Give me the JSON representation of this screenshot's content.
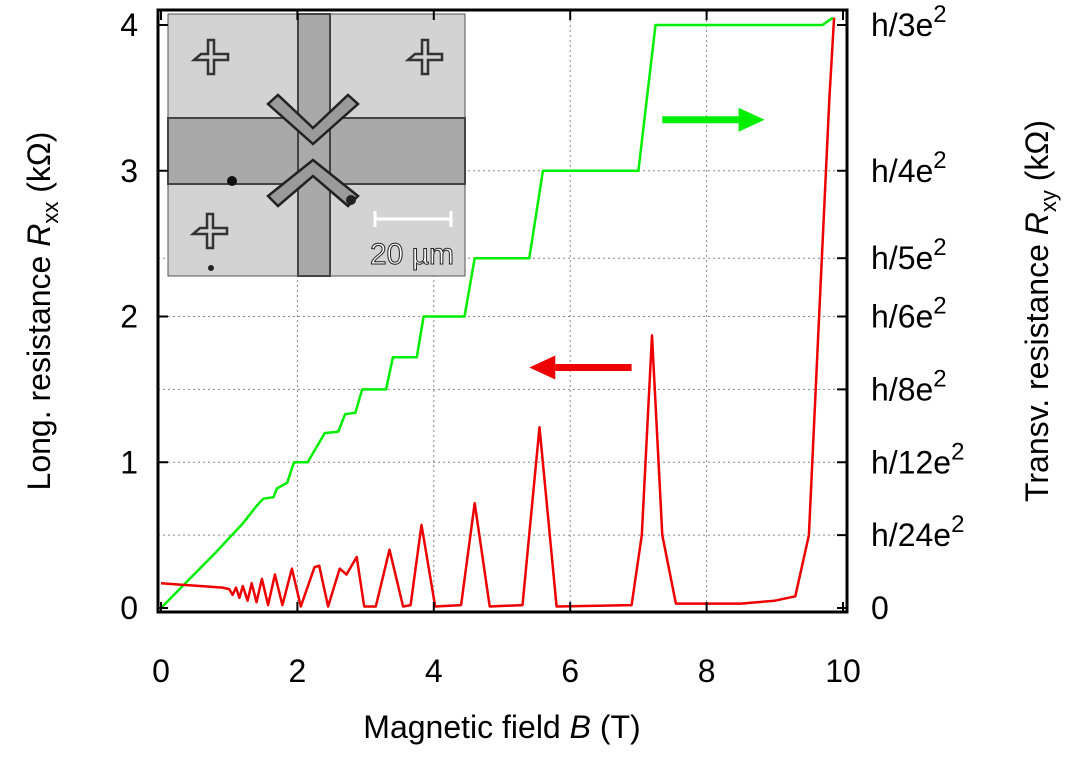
{
  "chart_data": {
    "type": "line",
    "xlabel": {
      "prefix": "Magnetic field ",
      "symbol": "B",
      "suffix": " (T)"
    },
    "ylabel_left": {
      "prefix": "Long. resistance ",
      "symbol": "R",
      "sub": "xx",
      "suffix": " (kΩ)"
    },
    "ylabel_right": {
      "prefix": "Transv. resistance ",
      "symbol": "R",
      "sub": "xy",
      "suffix": " (kΩ)"
    },
    "xlim": [
      0,
      10
    ],
    "ylim": [
      0,
      4
    ],
    "grid": true,
    "x_ticks": [
      "0",
      "2",
      "4",
      "6",
      "8",
      "10"
    ],
    "y_ticks_left": [
      "0",
      "1",
      "2",
      "3",
      "4"
    ],
    "y_ticks_right": [
      {
        "label": "0",
        "y": 0
      },
      {
        "label": "h/24e",
        "sup": "2",
        "y": 0.5
      },
      {
        "label": "h/12e",
        "sup": "2",
        "y": 1.0
      },
      {
        "label": "h/8e",
        "sup": "2",
        "y": 1.5
      },
      {
        "label": "h/6e",
        "sup": "2",
        "y": 2.0
      },
      {
        "label": "h/5e",
        "sup": "2",
        "y": 2.4
      },
      {
        "label": "h/4e",
        "sup": "2",
        "y": 3.0
      },
      {
        "label": "h/3e",
        "sup": "2",
        "y": 4.0
      }
    ],
    "series": [
      {
        "color": "#00ee00",
        "axis": "right",
        "points": [
          [
            0.0,
            0.0
          ],
          [
            0.4,
            0.19
          ],
          [
            0.8,
            0.38
          ],
          [
            1.0,
            0.48
          ],
          [
            1.2,
            0.58
          ],
          [
            1.4,
            0.7
          ],
          [
            1.5,
            0.75
          ],
          [
            1.65,
            0.76
          ],
          [
            1.7,
            0.82
          ],
          [
            1.85,
            0.86
          ],
          [
            1.95,
            1.0
          ],
          [
            2.15,
            1.0
          ],
          [
            2.25,
            1.08
          ],
          [
            2.4,
            1.2
          ],
          [
            2.6,
            1.21
          ],
          [
            2.7,
            1.33
          ],
          [
            2.85,
            1.34
          ],
          [
            2.95,
            1.5
          ],
          [
            3.3,
            1.5
          ],
          [
            3.4,
            1.72
          ],
          [
            3.75,
            1.72
          ],
          [
            3.85,
            2.0
          ],
          [
            4.45,
            2.0
          ],
          [
            4.6,
            2.4
          ],
          [
            5.4,
            2.4
          ],
          [
            5.6,
            3.0
          ],
          [
            7.0,
            3.0
          ],
          [
            7.25,
            4.0
          ],
          [
            9.7,
            4.0
          ],
          [
            9.85,
            4.05
          ]
        ]
      },
      {
        "color": "#ee0000",
        "axis": "left",
        "points": [
          [
            0.0,
            0.17
          ],
          [
            0.3,
            0.16
          ],
          [
            0.6,
            0.15
          ],
          [
            0.9,
            0.14
          ],
          [
            1.0,
            0.13
          ],
          [
            1.05,
            0.09
          ],
          [
            1.1,
            0.14
          ],
          [
            1.15,
            0.07
          ],
          [
            1.2,
            0.15
          ],
          [
            1.27,
            0.05
          ],
          [
            1.33,
            0.17
          ],
          [
            1.4,
            0.04
          ],
          [
            1.48,
            0.2
          ],
          [
            1.57,
            0.02
          ],
          [
            1.67,
            0.23
          ],
          [
            1.78,
            0.02
          ],
          [
            1.92,
            0.27
          ],
          [
            2.05,
            0.01
          ],
          [
            2.25,
            0.28
          ],
          [
            2.32,
            0.29
          ],
          [
            2.45,
            0.01
          ],
          [
            2.62,
            0.27
          ],
          [
            2.72,
            0.23
          ],
          [
            2.87,
            0.35
          ],
          [
            2.98,
            0.01
          ],
          [
            3.15,
            0.01
          ],
          [
            3.35,
            0.4
          ],
          [
            3.55,
            0.01
          ],
          [
            3.66,
            0.02
          ],
          [
            3.82,
            0.57
          ],
          [
            4.02,
            0.01
          ],
          [
            4.4,
            0.02
          ],
          [
            4.6,
            0.72
          ],
          [
            4.82,
            0.01
          ],
          [
            5.3,
            0.02
          ],
          [
            5.55,
            1.24
          ],
          [
            5.8,
            0.01
          ],
          [
            6.9,
            0.02
          ],
          [
            7.05,
            0.5
          ],
          [
            7.2,
            1.87
          ],
          [
            7.35,
            0.5
          ],
          [
            7.55,
            0.03
          ],
          [
            8.5,
            0.03
          ],
          [
            9.0,
            0.05
          ],
          [
            9.3,
            0.08
          ],
          [
            9.5,
            0.5
          ],
          [
            9.65,
            2.0
          ],
          [
            9.8,
            3.5
          ],
          [
            9.87,
            4.05
          ]
        ]
      }
    ],
    "arrows": [
      {
        "color": "#00ee00",
        "from": [
          7.35,
          3.35
        ],
        "to": [
          8.85,
          3.35
        ]
      },
      {
        "color": "#ee0000",
        "from": [
          6.9,
          1.65
        ],
        "to": [
          5.4,
          1.65
        ]
      }
    ],
    "inset": {
      "scale_bar_label": "20 µm"
    }
  }
}
